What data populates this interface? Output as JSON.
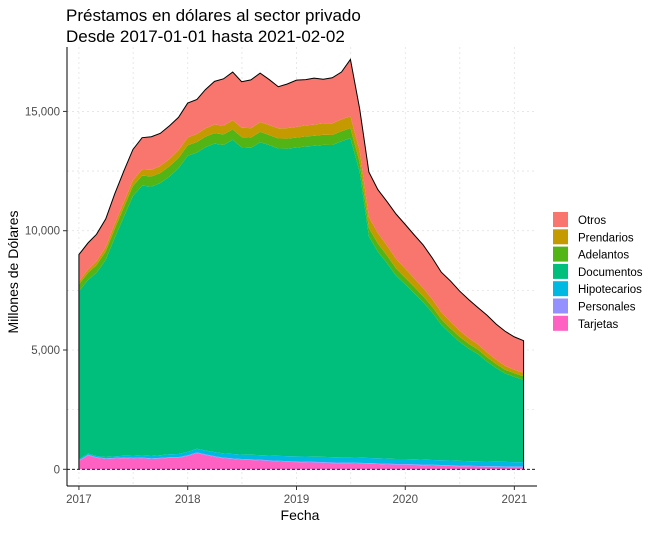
{
  "chart_data": {
    "type": "area",
    "stacked": true,
    "title": "Préstamos en dólares al sector privado",
    "subtitle": "Desde 2017-01-01 hasta 2021-02-02",
    "xlabel": "Fecha",
    "ylabel": "Millones de Dólares",
    "x_ticks": [
      "2017",
      "2018",
      "2019",
      "2020",
      "2021"
    ],
    "y_ticks": [
      "0",
      "5,000",
      "10,000",
      "15,000"
    ],
    "xlim": [
      "2016-11-22",
      "2021-03-18"
    ],
    "ylim": [
      -700,
      17700
    ],
    "grid": "dotted",
    "legend_position": "right",
    "x": [
      "2017-01-01",
      "2017-02-01",
      "2017-03-01",
      "2017-04-01",
      "2017-05-01",
      "2017-06-01",
      "2017-07-01",
      "2017-08-01",
      "2017-09-01",
      "2017-10-01",
      "2017-11-01",
      "2017-12-01",
      "2018-01-01",
      "2018-02-01",
      "2018-03-01",
      "2018-04-01",
      "2018-05-01",
      "2018-06-01",
      "2018-07-01",
      "2018-08-01",
      "2018-09-01",
      "2018-10-01",
      "2018-11-01",
      "2018-12-01",
      "2019-01-01",
      "2019-02-01",
      "2019-03-01",
      "2019-04-01",
      "2019-05-01",
      "2019-06-01",
      "2019-07-01",
      "2019-08-01",
      "2019-09-01",
      "2019-10-01",
      "2019-11-01",
      "2019-12-01",
      "2020-01-01",
      "2020-02-01",
      "2020-03-01",
      "2020-04-01",
      "2020-05-01",
      "2020-06-01",
      "2020-07-01",
      "2020-08-01",
      "2020-09-01",
      "2020-10-01",
      "2020-11-01",
      "2020-12-01",
      "2021-01-01",
      "2021-02-01"
    ],
    "series": [
      {
        "name": "Tarjetas",
        "color": "#FF61C3",
        "values": [
          350,
          580,
          480,
          430,
          450,
          470,
          450,
          460,
          430,
          450,
          480,
          480,
          560,
          680,
          600,
          520,
          460,
          430,
          400,
          390,
          370,
          350,
          330,
          310,
          300,
          290,
          280,
          270,
          260,
          250,
          250,
          240,
          230,
          220,
          200,
          190,
          190,
          180,
          170,
          160,
          150,
          140,
          130,
          120,
          110,
          105,
          100,
          95,
          90,
          90
        ]
      },
      {
        "name": "Personales",
        "color": "#9590FF",
        "values": [
          30,
          30,
          30,
          30,
          30,
          30,
          30,
          30,
          30,
          30,
          30,
          30,
          30,
          30,
          30,
          30,
          30,
          30,
          30,
          30,
          30,
          30,
          30,
          30,
          30,
          30,
          30,
          30,
          30,
          30,
          30,
          30,
          30,
          30,
          30,
          30,
          30,
          30,
          30,
          30,
          30,
          30,
          30,
          30,
          30,
          30,
          30,
          30,
          30,
          30
        ]
      },
      {
        "name": "Hipotecarios",
        "color": "#00B9E3",
        "values": [
          40,
          45,
          50,
          55,
          60,
          70,
          80,
          90,
          100,
          110,
          120,
          130,
          140,
          150,
          160,
          170,
          175,
          180,
          185,
          190,
          195,
          200,
          205,
          210,
          210,
          215,
          215,
          220,
          220,
          220,
          220,
          220,
          215,
          215,
          215,
          210,
          210,
          210,
          205,
          200,
          200,
          200,
          195,
          195,
          190,
          190,
          185,
          185,
          180,
          180
        ]
      },
      {
        "name": "Documentos",
        "color": "#00BF7D",
        "values": [
          7050,
          7290,
          7680,
          8270,
          9160,
          10020,
          10890,
          11310,
          11290,
          11410,
          11640,
          11980,
          12410,
          12420,
          12710,
          12930,
          12930,
          13170,
          12880,
          12860,
          13120,
          13010,
          12880,
          12890,
          12940,
          13000,
          13030,
          13080,
          13080,
          13250,
          13380,
          11980,
          9280,
          8660,
          8190,
          7690,
          7320,
          6950,
          6600,
          6170,
          5680,
          5310,
          4990,
          4715,
          4495,
          4195,
          3930,
          3705,
          3575,
          3450
        ]
      },
      {
        "name": "Adelantos",
        "color": "#52B415",
        "values": [
          280,
          300,
          320,
          350,
          380,
          400,
          420,
          420,
          420,
          420,
          430,
          430,
          440,
          440,
          440,
          440,
          440,
          440,
          430,
          430,
          430,
          420,
          420,
          420,
          420,
          420,
          420,
          420,
          420,
          420,
          420,
          400,
          360,
          340,
          320,
          300,
          280,
          260,
          250,
          240,
          230,
          220,
          210,
          200,
          190,
          180,
          170,
          160,
          150,
          150
        ]
      },
      {
        "name": "Prendarios",
        "color": "#C49A00",
        "values": [
          120,
          140,
          160,
          180,
          200,
          220,
          240,
          260,
          280,
          300,
          310,
          320,
          330,
          340,
          350,
          360,
          370,
          380,
          390,
          400,
          410,
          420,
          430,
          440,
          450,
          460,
          470,
          480,
          490,
          500,
          500,
          480,
          460,
          440,
          420,
          400,
          380,
          360,
          340,
          320,
          300,
          280,
          260,
          240,
          220,
          200,
          180,
          160,
          150,
          140
        ]
      },
      {
        "name": "Otros",
        "color": "#F8766D",
        "values": [
          1130,
          1110,
          1130,
          1180,
          1260,
          1300,
          1290,
          1330,
          1390,
          1360,
          1390,
          1380,
          1440,
          1440,
          1620,
          1810,
          1960,
          2020,
          1930,
          2020,
          2050,
          1910,
          1740,
          1850,
          1960,
          1920,
          1950,
          1850,
          1910,
          1980,
          2380,
          1760,
          1880,
          1820,
          1840,
          1880,
          1850,
          1820,
          1810,
          1730,
          1670,
          1710,
          1660,
          1610,
          1540,
          1560,
          1490,
          1450,
          1375,
          1350
        ]
      }
    ]
  }
}
